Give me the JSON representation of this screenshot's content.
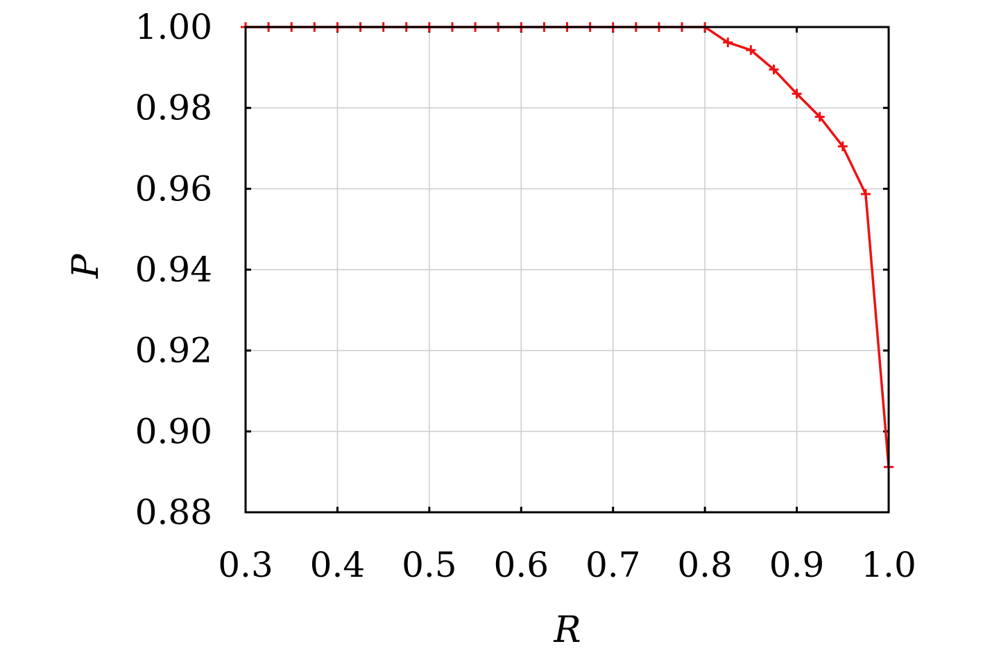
{
  "chart_data": {
    "type": "line",
    "title": "",
    "xlabel": "R",
    "ylabel": "P",
    "xlim": [
      0.3,
      1.0
    ],
    "ylim": [
      0.88,
      1.0
    ],
    "grid": true,
    "x_ticks": [
      0.3,
      0.4,
      0.5,
      0.6,
      0.7,
      0.8,
      0.9,
      1.0
    ],
    "x_tick_labels": [
      "0.3",
      "0.4",
      "0.5",
      "0.6",
      "0.7",
      "0.8",
      "0.9",
      "1.0"
    ],
    "y_ticks": [
      0.88,
      0.9,
      0.92,
      0.94,
      0.96,
      0.98,
      1.0
    ],
    "y_tick_labels": [
      "0.88",
      "0.90",
      "0.92",
      "0.94",
      "0.96",
      "0.98",
      "1.00"
    ],
    "series": [
      {
        "color": "#ee1111",
        "marker": "plus",
        "x": [
          0.3,
          0.325,
          0.35,
          0.375,
          0.4,
          0.425,
          0.45,
          0.475,
          0.5,
          0.525,
          0.55,
          0.575,
          0.6,
          0.625,
          0.65,
          0.675,
          0.7,
          0.725,
          0.75,
          0.775,
          0.8,
          0.825,
          0.85,
          0.875,
          0.9,
          0.925,
          0.95,
          0.975,
          1.0
        ],
        "y": [
          1.0,
          1.0,
          1.0,
          1.0,
          1.0,
          1.0,
          1.0,
          1.0,
          1.0,
          1.0,
          1.0,
          1.0,
          1.0,
          1.0,
          1.0,
          1.0,
          1.0,
          1.0,
          1.0,
          1.0,
          1.0,
          0.9962,
          0.9943,
          0.9895,
          0.9835,
          0.9778,
          0.9705,
          0.9587,
          0.8912
        ]
      }
    ]
  }
}
